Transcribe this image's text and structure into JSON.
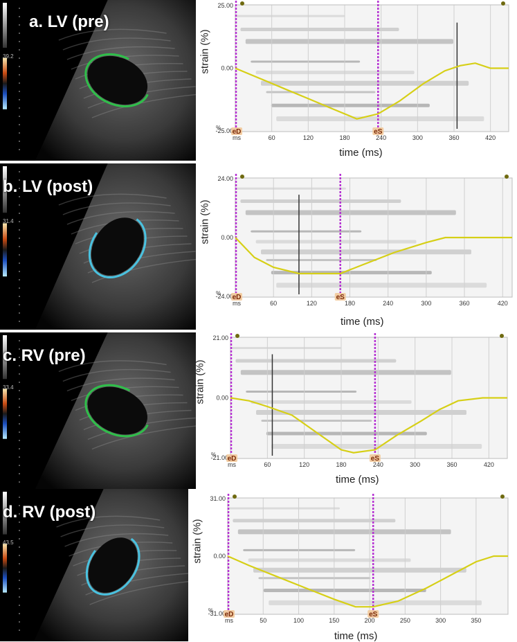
{
  "chart_data": [
    {
      "type": "line",
      "panel_label": "a.  LV (pre)",
      "scale_value": "39.2",
      "ylabel": "strain (%)",
      "xlabel": "time (ms)",
      "y_top_label": "25.00",
      "y_mid_label": "0.00",
      "y_bottom_label": "-25.00",
      "ylim": [
        -25,
        25
      ],
      "xlim": [
        0,
        450
      ],
      "x_unit_label": "ms",
      "x_ticks": [
        "60",
        "120",
        "180",
        "240",
        "300",
        "360",
        "420"
      ],
      "x_tick_values": [
        60,
        120,
        180,
        240,
        300,
        360,
        420
      ],
      "eD_label": "eD",
      "eD_x": 0,
      "eS_label": "eS",
      "eS_x": 235,
      "marker_line_x": 365,
      "series": [
        {
          "x": [
            0,
            40,
            80,
            120,
            160,
            200,
            235,
            270,
            310,
            345,
            370,
            395,
            420,
            450
          ],
          "y": [
            0,
            -4,
            -8,
            -12,
            -16,
            -20,
            -18,
            -13,
            -6,
            -1,
            1,
            2,
            0,
            0
          ]
        }
      ],
      "color": "#d6cf16"
    },
    {
      "type": "line",
      "panel_label": "b. LV (post)",
      "scale_value": "31.4",
      "ylabel": "strain (%)",
      "xlabel": "time (ms)",
      "y_top_label": "24.00",
      "y_mid_label": "0.00",
      "y_bottom_label": "-24.00",
      "ylim": [
        -24,
        24
      ],
      "xlim": [
        0,
        435
      ],
      "x_unit_label": "ms",
      "x_ticks": [
        "60",
        "120",
        "180",
        "240",
        "300",
        "360",
        "420"
      ],
      "x_tick_values": [
        60,
        120,
        180,
        240,
        300,
        360,
        420
      ],
      "eD_label": "eD",
      "eD_x": 0,
      "eS_label": "eS",
      "eS_x": 165,
      "marker_line_x": 100,
      "series": [
        {
          "x": [
            0,
            30,
            60,
            100,
            140,
            165,
            200,
            250,
            300,
            330,
            360,
            400,
            435
          ],
          "y": [
            0,
            -8,
            -12,
            -14.5,
            -14.5,
            -14.5,
            -11,
            -6,
            -2,
            0,
            0,
            0,
            0
          ]
        }
      ],
      "color": "#d6cf16"
    },
    {
      "type": "line",
      "panel_label": "c.  RV (pre)",
      "scale_value": "33.4",
      "ylabel": "strain (%)",
      "xlabel": "time (ms)",
      "y_top_label": "21.00",
      "y_mid_label": "0.00",
      "y_bottom_label": "-21.00",
      "ylim": [
        -21,
        21
      ],
      "xlim": [
        0,
        450
      ],
      "x_unit_label": "ms",
      "x_ticks": [
        "60",
        "120",
        "180",
        "240",
        "300",
        "360",
        "420"
      ],
      "x_tick_values": [
        60,
        120,
        180,
        240,
        300,
        360,
        420
      ],
      "eD_label": "eD",
      "eD_x": 0,
      "eS_label": "eS",
      "eS_x": 235,
      "marker_line_x": 68,
      "series": [
        {
          "x": [
            0,
            30,
            60,
            100,
            140,
            180,
            200,
            235,
            270,
            310,
            340,
            370,
            410,
            450
          ],
          "y": [
            0,
            -1,
            -3,
            -6,
            -12,
            -18,
            -19,
            -18,
            -13,
            -8,
            -4,
            -1,
            0,
            0
          ]
        }
      ],
      "color": "#d6cf16"
    },
    {
      "type": "line",
      "panel_label": "d. RV (post)",
      "scale_value": "43.5",
      "ylabel": "strain (%)",
      "xlabel": "time (ms)",
      "y_top_label": "31.00",
      "y_mid_label": "0.00",
      "y_bottom_label": "-31.00",
      "ylim": [
        -31,
        31
      ],
      "xlim": [
        0,
        395
      ],
      "x_unit_label": "ms",
      "x_ticks": [
        "50",
        "100",
        "150",
        "200",
        "250",
        "300",
        "350"
      ],
      "x_tick_values": [
        50,
        100,
        150,
        200,
        250,
        300,
        350
      ],
      "eD_label": "eD",
      "eD_x": 0,
      "eS_label": "eS",
      "eS_x": 205,
      "marker_line_x": null,
      "series": [
        {
          "x": [
            0,
            30,
            70,
            110,
            150,
            180,
            205,
            240,
            280,
            320,
            350,
            375,
            395
          ],
          "y": [
            0,
            -5,
            -11,
            -17,
            -23,
            -27,
            -27,
            -24,
            -17,
            -9,
            -3,
            0,
            0
          ]
        }
      ],
      "color": "#d6cf16"
    }
  ],
  "colors": {
    "strain_curve": "#d6cf16",
    "time_markers": "#b531d2",
    "background": "#ffffff",
    "echo_background": "#000000"
  }
}
